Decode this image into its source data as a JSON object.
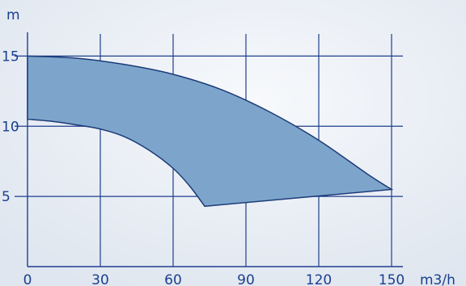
{
  "chart_data": {
    "type": "area",
    "title": "",
    "xlabel": "m3/h",
    "ylabel": "m",
    "xlim": [
      0,
      150
    ],
    "ylim": [
      0,
      16
    ],
    "x_ticks": [
      0,
      30,
      60,
      90,
      120,
      150
    ],
    "y_ticks": [
      5,
      10,
      15
    ],
    "grid": true,
    "legend": "none",
    "band_color": "#7da5cb",
    "line_color": "#1b3a78",
    "series": [
      {
        "values": [
          [
            0,
            15.0
          ],
          [
            20,
            14.85
          ],
          [
            40,
            14.4
          ],
          [
            60,
            13.7
          ],
          [
            80,
            12.6
          ],
          [
            100,
            11.0
          ],
          [
            120,
            9.0
          ],
          [
            140,
            6.6
          ],
          [
            150,
            5.5
          ]
        ]
      },
      {
        "values": [
          [
            0,
            10.5
          ],
          [
            10,
            10.35
          ],
          [
            20,
            10.1
          ],
          [
            30,
            9.8
          ],
          [
            40,
            9.25
          ],
          [
            50,
            8.3
          ],
          [
            60,
            7.0
          ],
          [
            67,
            5.7
          ],
          [
            73,
            4.3
          ]
        ]
      },
      {
        "values": [
          [
            73,
            4.3
          ],
          [
            150,
            5.5
          ]
        ]
      }
    ]
  }
}
